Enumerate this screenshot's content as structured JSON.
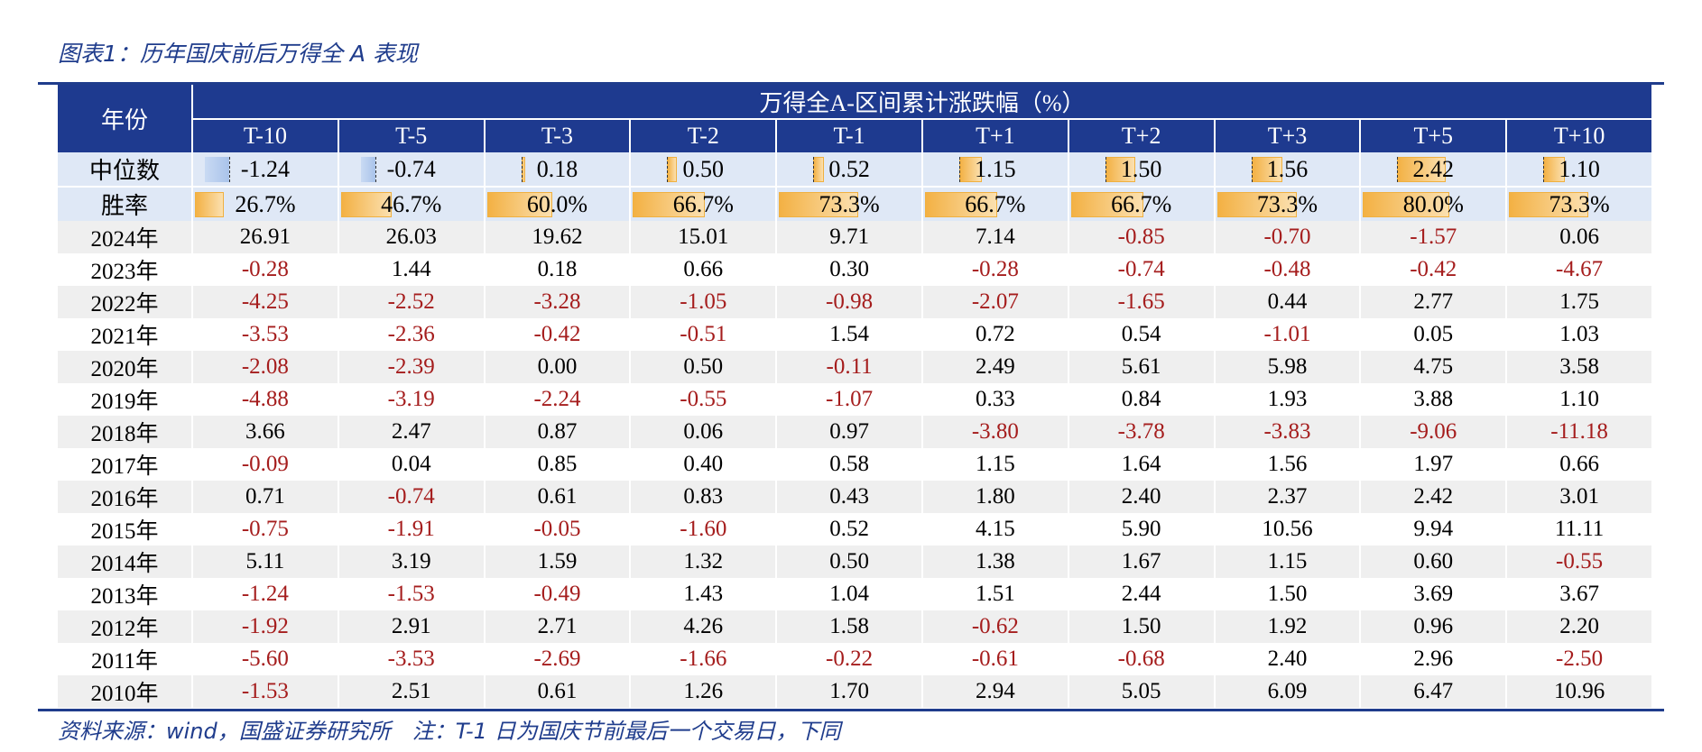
{
  "title": "图表1：历年国庆前后万得全 A 表现",
  "footer": "资料来源：wind，国盛证券研究所　注：T-1 日为国庆节前最后一个交易日，下同",
  "header": {
    "year_label": "年份",
    "group_label": "万得全A-区间累计涨跌幅（%）",
    "columns": [
      "T-10",
      "T-5",
      "T-3",
      "T-2",
      "T-1",
      "T+1",
      "T+2",
      "T+3",
      "T+5",
      "T+10"
    ]
  },
  "median": {
    "label": "中位数",
    "values": [
      "-1.24",
      "-0.74",
      "0.18",
      "0.50",
      "0.52",
      "1.15",
      "1.50",
      "1.56",
      "2.42",
      "1.10"
    ]
  },
  "win_rate": {
    "label": "胜率",
    "values": [
      "26.7%",
      "46.7%",
      "60.0%",
      "66.7%",
      "73.3%",
      "66.7%",
      "66.7%",
      "73.3%",
      "80.0%",
      "73.3%"
    ],
    "fractions": [
      0.267,
      0.467,
      0.6,
      0.667,
      0.733,
      0.667,
      0.667,
      0.733,
      0.8,
      0.733
    ]
  },
  "rows": [
    {
      "year": "2024年",
      "values": [
        "26.91",
        "26.03",
        "19.62",
        "15.01",
        "9.71",
        "7.14",
        "-0.85",
        "-0.70",
        "-1.57",
        "0.06"
      ]
    },
    {
      "year": "2023年",
      "values": [
        "-0.28",
        "1.44",
        "0.18",
        "0.66",
        "0.30",
        "-0.28",
        "-0.74",
        "-0.48",
        "-0.42",
        "-4.67"
      ]
    },
    {
      "year": "2022年",
      "values": [
        "-4.25",
        "-2.52",
        "-3.28",
        "-1.05",
        "-0.98",
        "-2.07",
        "-1.65",
        "0.44",
        "2.77",
        "1.75"
      ]
    },
    {
      "year": "2021年",
      "values": [
        "-3.53",
        "-2.36",
        "-0.42",
        "-0.51",
        "1.54",
        "0.72",
        "0.54",
        "-1.01",
        "0.05",
        "1.03"
      ]
    },
    {
      "year": "2020年",
      "values": [
        "-2.08",
        "-2.39",
        "0.00",
        "0.50",
        "-0.11",
        "2.49",
        "5.61",
        "5.98",
        "4.75",
        "3.58"
      ]
    },
    {
      "year": "2019年",
      "values": [
        "-4.88",
        "-3.19",
        "-2.24",
        "-0.55",
        "-1.07",
        "0.33",
        "0.84",
        "1.93",
        "3.88",
        "1.10"
      ]
    },
    {
      "year": "2018年",
      "values": [
        "3.66",
        "2.47",
        "0.87",
        "0.06",
        "0.97",
        "-3.80",
        "-3.78",
        "-3.83",
        "-9.06",
        "-11.18"
      ]
    },
    {
      "year": "2017年",
      "values": [
        "-0.09",
        "0.04",
        "0.85",
        "0.40",
        "0.58",
        "1.15",
        "1.64",
        "1.56",
        "1.97",
        "0.66"
      ]
    },
    {
      "year": "2016年",
      "values": [
        "0.71",
        "-0.74",
        "0.61",
        "0.83",
        "0.43",
        "1.80",
        "2.40",
        "2.37",
        "2.42",
        "3.01"
      ]
    },
    {
      "year": "2015年",
      "values": [
        "-0.75",
        "-1.91",
        "-0.05",
        "-1.60",
        "0.52",
        "4.15",
        "5.90",
        "10.56",
        "9.94",
        "11.11"
      ]
    },
    {
      "year": "2014年",
      "values": [
        "5.11",
        "3.19",
        "1.59",
        "1.32",
        "0.50",
        "1.38",
        "1.67",
        "1.15",
        "0.60",
        "-0.55"
      ]
    },
    {
      "year": "2013年",
      "values": [
        "-1.24",
        "-1.53",
        "-0.49",
        "1.43",
        "1.04",
        "1.51",
        "2.44",
        "1.50",
        "3.69",
        "3.67"
      ]
    },
    {
      "year": "2012年",
      "values": [
        "-1.92",
        "2.91",
        "2.71",
        "4.26",
        "1.58",
        "-0.62",
        "1.50",
        "1.92",
        "0.96",
        "2.20"
      ]
    },
    {
      "year": "2011年",
      "values": [
        "-5.60",
        "-3.53",
        "-2.69",
        "-1.66",
        "-0.22",
        "-0.61",
        "-0.68",
        "2.40",
        "2.96",
        "-2.50"
      ]
    },
    {
      "year": "2010年",
      "values": [
        "-1.53",
        "2.51",
        "0.61",
        "1.26",
        "1.70",
        "2.94",
        "5.05",
        "6.09",
        "6.47",
        "10.96"
      ]
    }
  ],
  "colors": {
    "header_bg": "#1e3a8f",
    "negative_text": "#a51d1d",
    "win_bar": "#f3b144",
    "neg_bar": "#a9c3ea",
    "stripe": "#efefef"
  }
}
